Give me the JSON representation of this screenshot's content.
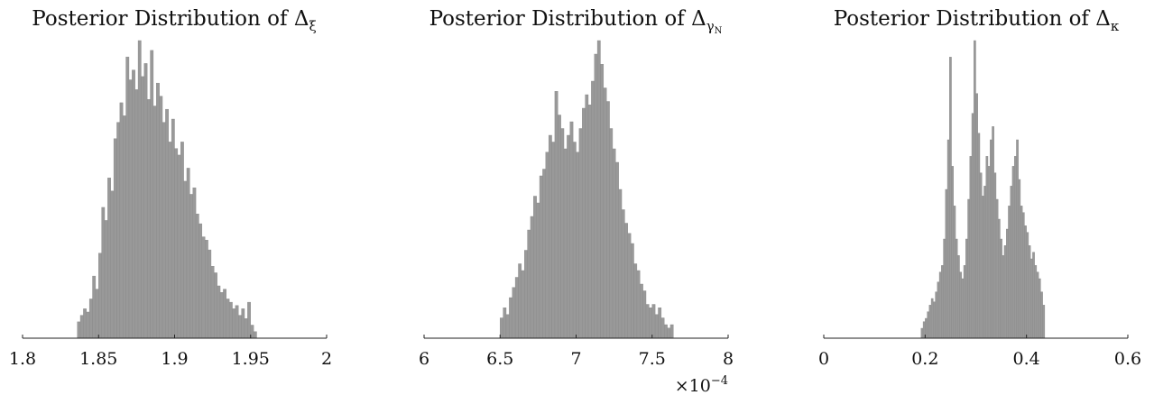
{
  "chart_data": [
    {
      "type": "bar",
      "title": "Posterior Distribution of Δ",
      "title_subscript": "ξ",
      "xlim": [
        1.8,
        2.0
      ],
      "xticks": [
        1.8,
        1.85,
        1.9,
        1.95,
        2.0
      ],
      "xtick_labels": [
        "1.8",
        "1.85",
        "1.9",
        "1.95",
        "2"
      ],
      "bar_color": "#999999",
      "values": [
        [
          1.836,
          0.05
        ],
        [
          1.838,
          0.07
        ],
        [
          1.84,
          0.09
        ],
        [
          1.842,
          0.08
        ],
        [
          1.844,
          0.12
        ],
        [
          1.846,
          0.19
        ],
        [
          1.848,
          0.15
        ],
        [
          1.85,
          0.26
        ],
        [
          1.852,
          0.4
        ],
        [
          1.854,
          0.36
        ],
        [
          1.856,
          0.49
        ],
        [
          1.858,
          0.45
        ],
        [
          1.86,
          0.61
        ],
        [
          1.862,
          0.66
        ],
        [
          1.864,
          0.72
        ],
        [
          1.866,
          0.68
        ],
        [
          1.868,
          0.86
        ],
        [
          1.87,
          0.79
        ],
        [
          1.872,
          0.82
        ],
        [
          1.874,
          0.76
        ],
        [
          1.876,
          0.91
        ],
        [
          1.878,
          0.8
        ],
        [
          1.88,
          0.84
        ],
        [
          1.882,
          0.73
        ],
        [
          1.884,
          0.88
        ],
        [
          1.886,
          0.71
        ],
        [
          1.888,
          0.78
        ],
        [
          1.89,
          0.74
        ],
        [
          1.892,
          0.66
        ],
        [
          1.894,
          0.7
        ],
        [
          1.896,
          0.6
        ],
        [
          1.898,
          0.67
        ],
        [
          1.9,
          0.58
        ],
        [
          1.902,
          0.56
        ],
        [
          1.904,
          0.6
        ],
        [
          1.906,
          0.48
        ],
        [
          1.908,
          0.52
        ],
        [
          1.91,
          0.44
        ],
        [
          1.912,
          0.46
        ],
        [
          1.914,
          0.38
        ],
        [
          1.916,
          0.35
        ],
        [
          1.918,
          0.31
        ],
        [
          1.92,
          0.3
        ],
        [
          1.922,
          0.27
        ],
        [
          1.924,
          0.22
        ],
        [
          1.926,
          0.2
        ],
        [
          1.928,
          0.16
        ],
        [
          1.93,
          0.14
        ],
        [
          1.932,
          0.15
        ],
        [
          1.934,
          0.12
        ],
        [
          1.936,
          0.11
        ],
        [
          1.938,
          0.09
        ],
        [
          1.94,
          0.1
        ],
        [
          1.942,
          0.07
        ],
        [
          1.944,
          0.09
        ],
        [
          1.946,
          0.06
        ],
        [
          1.948,
          0.11
        ],
        [
          1.95,
          0.04
        ],
        [
          1.952,
          0.02
        ]
      ]
    },
    {
      "type": "bar",
      "title": "Posterior Distribution of Δ",
      "title_subscript": "γ",
      "title_subsubscript": "N",
      "xlim": [
        6.0,
        8.0
      ],
      "xticks": [
        6.0,
        6.5,
        7.0,
        7.5,
        8.0
      ],
      "xtick_labels": [
        "6",
        "6.5",
        "7",
        "7.5",
        "8"
      ],
      "x_multiplier": "×10",
      "x_multiplier_exponent": "−4",
      "bar_color": "#999999",
      "values": [
        [
          6.5,
          0.06
        ],
        [
          6.52,
          0.09
        ],
        [
          6.54,
          0.07
        ],
        [
          6.56,
          0.12
        ],
        [
          6.58,
          0.15
        ],
        [
          6.6,
          0.18
        ],
        [
          6.62,
          0.22
        ],
        [
          6.64,
          0.2
        ],
        [
          6.66,
          0.26
        ],
        [
          6.68,
          0.32
        ],
        [
          6.7,
          0.36
        ],
        [
          6.72,
          0.42
        ],
        [
          6.74,
          0.4
        ],
        [
          6.76,
          0.48
        ],
        [
          6.78,
          0.5
        ],
        [
          6.8,
          0.55
        ],
        [
          6.82,
          0.6
        ],
        [
          6.84,
          0.58
        ],
        [
          6.86,
          0.73
        ],
        [
          6.88,
          0.66
        ],
        [
          6.9,
          0.62
        ],
        [
          6.92,
          0.56
        ],
        [
          6.94,
          0.6
        ],
        [
          6.96,
          0.64
        ],
        [
          6.98,
          0.58
        ],
        [
          7.0,
          0.55
        ],
        [
          7.02,
          0.62
        ],
        [
          7.04,
          0.68
        ],
        [
          7.06,
          0.72
        ],
        [
          7.08,
          0.69
        ],
        [
          7.1,
          0.76
        ],
        [
          7.12,
          0.84
        ],
        [
          7.14,
          0.88
        ],
        [
          7.16,
          0.81
        ],
        [
          7.18,
          0.74
        ],
        [
          7.2,
          0.7
        ],
        [
          7.22,
          0.62
        ],
        [
          7.24,
          0.56
        ],
        [
          7.26,
          0.52
        ],
        [
          7.28,
          0.44
        ],
        [
          7.3,
          0.38
        ],
        [
          7.32,
          0.34
        ],
        [
          7.34,
          0.31
        ],
        [
          7.36,
          0.28
        ],
        [
          7.38,
          0.22
        ],
        [
          7.4,
          0.2
        ],
        [
          7.42,
          0.16
        ],
        [
          7.44,
          0.14
        ],
        [
          7.46,
          0.1
        ],
        [
          7.48,
          0.09
        ],
        [
          7.5,
          0.1
        ],
        [
          7.52,
          0.07
        ],
        [
          7.54,
          0.09
        ],
        [
          7.56,
          0.06
        ],
        [
          7.58,
          0.04
        ],
        [
          7.6,
          0.03
        ],
        [
          7.62,
          0.04
        ]
      ]
    },
    {
      "type": "bar",
      "title": "Posterior Distribution of Δ",
      "title_subscript": "κ",
      "xlim": [
        0.0,
        0.6
      ],
      "xticks": [
        0.0,
        0.2,
        0.4,
        0.6
      ],
      "xtick_labels": [
        "0",
        "0.2",
        "0.4",
        "0.6"
      ],
      "bar_color": "#999999",
      "values": [
        [
          0.192,
          0.03
        ],
        [
          0.196,
          0.05
        ],
        [
          0.2,
          0.06
        ],
        [
          0.204,
          0.08
        ],
        [
          0.208,
          0.1
        ],
        [
          0.212,
          0.12
        ],
        [
          0.216,
          0.11
        ],
        [
          0.22,
          0.14
        ],
        [
          0.224,
          0.17
        ],
        [
          0.228,
          0.2
        ],
        [
          0.232,
          0.22
        ],
        [
          0.236,
          0.3
        ],
        [
          0.24,
          0.45
        ],
        [
          0.244,
          0.6
        ],
        [
          0.248,
          0.85
        ],
        [
          0.252,
          0.52
        ],
        [
          0.256,
          0.4
        ],
        [
          0.26,
          0.3
        ],
        [
          0.264,
          0.25
        ],
        [
          0.268,
          0.2
        ],
        [
          0.272,
          0.18
        ],
        [
          0.276,
          0.22
        ],
        [
          0.28,
          0.3
        ],
        [
          0.284,
          0.42
        ],
        [
          0.288,
          0.55
        ],
        [
          0.292,
          0.68
        ],
        [
          0.296,
          0.9
        ],
        [
          0.3,
          0.74
        ],
        [
          0.304,
          0.62
        ],
        [
          0.308,
          0.5
        ],
        [
          0.312,
          0.43
        ],
        [
          0.316,
          0.46
        ],
        [
          0.32,
          0.55
        ],
        [
          0.324,
          0.52
        ],
        [
          0.328,
          0.6
        ],
        [
          0.332,
          0.64
        ],
        [
          0.336,
          0.5
        ],
        [
          0.34,
          0.42
        ],
        [
          0.344,
          0.36
        ],
        [
          0.348,
          0.3
        ],
        [
          0.352,
          0.25
        ],
        [
          0.356,
          0.28
        ],
        [
          0.36,
          0.33
        ],
        [
          0.364,
          0.4
        ],
        [
          0.368,
          0.46
        ],
        [
          0.372,
          0.52
        ],
        [
          0.376,
          0.55
        ],
        [
          0.38,
          0.6
        ],
        [
          0.384,
          0.48
        ],
        [
          0.388,
          0.4
        ],
        [
          0.392,
          0.38
        ],
        [
          0.396,
          0.34
        ],
        [
          0.4,
          0.32
        ],
        [
          0.404,
          0.28
        ],
        [
          0.408,
          0.24
        ],
        [
          0.412,
          0.26
        ],
        [
          0.416,
          0.22
        ],
        [
          0.42,
          0.2
        ],
        [
          0.424,
          0.18
        ],
        [
          0.428,
          0.14
        ],
        [
          0.432,
          0.1
        ]
      ]
    }
  ]
}
